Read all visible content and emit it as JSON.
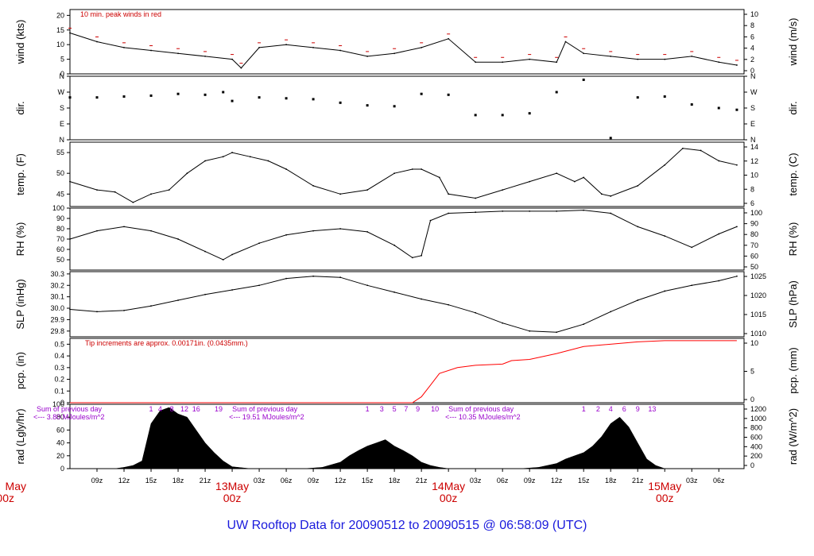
{
  "title": "UW Rooftop Data for 20090512  to  20090515 @ 06:58:09  (UTC)",
  "colors": {
    "frame": "#000000",
    "peak": "#cc0000",
    "precip": "#ff0000",
    "note": "#9900cc",
    "title": "#1a1adc",
    "date": "#cc0000"
  },
  "time_axis": {
    "hour_ticks": [
      "09z",
      "12z",
      "15z",
      "18z",
      "21z",
      "00z",
      "03z",
      "06z",
      "09z",
      "12z",
      "15z",
      "18z",
      "21z",
      "00z",
      "03z",
      "06z",
      "09z",
      "12z",
      "15z",
      "18z",
      "21z",
      "00z",
      "03z",
      "06z"
    ],
    "day_labels": [
      {
        "day": "May",
        "hour": "00z",
        "t": 0
      },
      {
        "day": "13May",
        "hour": "00z",
        "t": 24
      },
      {
        "day": "14May",
        "hour": "00z",
        "t": 48
      },
      {
        "day": "15May",
        "hour": "00z",
        "t": 72
      }
    ]
  },
  "chart_data": [
    {
      "type": "line",
      "id": "wind",
      "ylabel": "wind (kts)",
      "ylabel_right": "wind (m/s)",
      "left_ticks": [
        "0",
        "5",
        "10",
        "15",
        "20"
      ],
      "ylim": [
        0,
        22
      ],
      "right_ticks": [
        "0",
        "2",
        "4",
        "6",
        "8",
        "10"
      ],
      "annotation": "10 min. peak winds in red",
      "x": [
        6,
        9,
        12,
        15,
        18,
        21,
        24,
        25,
        27,
        30,
        33,
        36,
        39,
        42,
        45,
        48,
        51,
        54,
        57,
        60,
        61,
        63,
        66,
        69,
        72,
        75,
        78,
        80
      ],
      "y": [
        14,
        11,
        9,
        8,
        7,
        6,
        5,
        2,
        9,
        10,
        9,
        8,
        6,
        7,
        9,
        12,
        4,
        4,
        5,
        4,
        11,
        7,
        6,
        5,
        5,
        6,
        4,
        3
      ]
    },
    {
      "type": "scatter",
      "id": "dir",
      "ylabel": "dir.",
      "ylabel_right": "dir.",
      "left_ticks": [
        "N",
        "E",
        "S",
        "W",
        "N"
      ],
      "right_ticks": [
        "N",
        "E",
        "S",
        "W",
        "N"
      ],
      "ylim": [
        0,
        360
      ],
      "x": [
        6,
        9,
        12,
        15,
        18,
        21,
        23,
        24,
        27,
        30,
        33,
        36,
        39,
        42,
        45,
        48,
        51,
        54,
        57,
        60,
        63,
        66,
        69,
        72,
        75,
        78,
        80
      ],
      "y": [
        240,
        240,
        245,
        250,
        260,
        255,
        270,
        220,
        240,
        235,
        230,
        210,
        195,
        190,
        260,
        255,
        140,
        140,
        150,
        270,
        340,
        10,
        240,
        245,
        200,
        180,
        170
      ]
    },
    {
      "type": "line",
      "id": "temp",
      "ylabel": "temp. (F)",
      "ylabel_right": "temp. (C)",
      "left_ticks": [
        "45",
        "50",
        "55"
      ],
      "ylim": [
        42,
        57.5
      ],
      "right_ticks": [
        "6",
        "8",
        "10",
        "12",
        "14"
      ],
      "x": [
        6,
        9,
        11,
        13,
        15,
        17,
        19,
        21,
        23,
        24,
        26,
        28,
        30,
        33,
        36,
        39,
        42,
        44,
        45,
        47,
        48,
        51,
        54,
        57,
        60,
        62,
        63,
        65,
        66,
        69,
        72,
        74,
        76,
        78,
        80
      ],
      "y": [
        48,
        46,
        45.5,
        43,
        45,
        46,
        50,
        53,
        54,
        55,
        54,
        53,
        51,
        47,
        45,
        46,
        50,
        51,
        51,
        49,
        45,
        44,
        46,
        48,
        50,
        48,
        49,
        45,
        44.5,
        47,
        52,
        56,
        55.5,
        53,
        52
      ]
    },
    {
      "type": "line",
      "id": "rh",
      "ylabel": "RH (%)",
      "ylabel_right": "RH (%)",
      "left_ticks": [
        "50",
        "60",
        "70",
        "80",
        "90",
        "100"
      ],
      "ylim": [
        40,
        100
      ],
      "right_ticks": [
        "50",
        "60",
        "70",
        "80",
        "90",
        "100"
      ],
      "x": [
        6,
        9,
        12,
        15,
        18,
        21,
        23,
        24,
        27,
        30,
        33,
        36,
        39,
        42,
        44,
        45,
        46,
        48,
        51,
        54,
        57,
        60,
        63,
        66,
        69,
        72,
        75,
        78,
        80
      ],
      "y": [
        70,
        78,
        82,
        78,
        70,
        58,
        50,
        55,
        66,
        74,
        78,
        80,
        77,
        64,
        52,
        54,
        88,
        95,
        96,
        97,
        97,
        97,
        98,
        95,
        82,
        73,
        62,
        75,
        82
      ]
    },
    {
      "type": "line",
      "id": "slp",
      "ylabel": "SLP (inHg)",
      "ylabel_right": "SLP (hPa)",
      "left_ticks": [
        "29.8",
        "29.9",
        "30.0",
        "30.1",
        "30.2",
        "30.3"
      ],
      "ylim": [
        29.75,
        30.32
      ],
      "right_ticks": [
        "1010",
        "1015",
        "1020",
        "1025"
      ],
      "x": [
        6,
        9,
        12,
        15,
        18,
        21,
        24,
        27,
        30,
        33,
        36,
        39,
        42,
        45,
        48,
        51,
        54,
        57,
        60,
        63,
        66,
        69,
        72,
        75,
        78,
        80
      ],
      "y": [
        29.99,
        29.97,
        29.98,
        30.02,
        30.07,
        30.12,
        30.16,
        30.2,
        30.26,
        30.28,
        30.27,
        30.2,
        30.14,
        30.08,
        30.03,
        29.96,
        29.87,
        29.8,
        29.79,
        29.86,
        29.97,
        30.07,
        30.15,
        30.2,
        30.24,
        30.28
      ]
    },
    {
      "type": "area",
      "id": "pcp",
      "ylabel": "pcp. (in)",
      "ylabel_right": "pcp. (mm)",
      "left_ticks": [
        "0",
        "0.1",
        "0.2",
        "0.3",
        "0.4",
        "0.5"
      ],
      "ylim": [
        0,
        0.55
      ],
      "right_ticks": [
        "0",
        "5",
        "10"
      ],
      "annotation": "Tip increments are approx. 0.00171in. (0.0435mm.)",
      "x": [
        6,
        30,
        44,
        45,
        46,
        47,
        49,
        51,
        54,
        55,
        57,
        60,
        63,
        69,
        72,
        78,
        80
      ],
      "y": [
        0,
        0,
        0,
        0.05,
        0.15,
        0.25,
        0.3,
        0.32,
        0.33,
        0.36,
        0.37,
        0.42,
        0.48,
        0.52,
        0.53,
        0.53,
        0.53
      ]
    },
    {
      "type": "area",
      "id": "rad",
      "ylabel": "rad (Lgly/hr)",
      "ylabel_right": "rad (W/m^2)",
      "left_ticks": [
        "0",
        "20",
        "40",
        "60",
        "80",
        "100"
      ],
      "ylim": [
        0,
        100
      ],
      "right_ticks": [
        "0",
        "200",
        "400",
        "600",
        "800",
        "1000",
        "1200"
      ],
      "notes": [
        {
          "line1": "Sum of previous day",
          "line2": "<--- 3.80 MJoules/m^2",
          "t": -2
        },
        {
          "line1": "Sum of previous day",
          "line2": "<--- 19.51 MJoules/m^2",
          "t": 24
        },
        {
          "line1": "Sum of previous day",
          "line2": "<--- 10.35 MJoules/m^2",
          "t": 48
        }
      ],
      "hour_marks": [
        {
          "t": 15,
          "label": "1"
        },
        {
          "t": 16,
          "label": "4"
        },
        {
          "t": 17.3,
          "label": "8"
        },
        {
          "t": 18.7,
          "label": "12"
        },
        {
          "t": 20,
          "label": "16"
        },
        {
          "t": 22.5,
          "label": "19"
        },
        {
          "t": 39,
          "label": "1"
        },
        {
          "t": 40.6,
          "label": "3"
        },
        {
          "t": 42,
          "label": "5"
        },
        {
          "t": 43.3,
          "label": "7"
        },
        {
          "t": 44.6,
          "label": "9"
        },
        {
          "t": 46.5,
          "label": "10"
        },
        {
          "t": 63,
          "label": "1"
        },
        {
          "t": 64.6,
          "label": "2"
        },
        {
          "t": 66,
          "label": "4"
        },
        {
          "t": 67.5,
          "label": "6"
        },
        {
          "t": 69,
          "label": "9"
        },
        {
          "t": 70.6,
          "label": "13"
        }
      ],
      "x": [
        6,
        11,
        12,
        13,
        14,
        15,
        16,
        17,
        18,
        19,
        20,
        21,
        22,
        23,
        24,
        26,
        32,
        34,
        36,
        37,
        38,
        39,
        40,
        41,
        42,
        43,
        44,
        45,
        46,
        47,
        48,
        56,
        58,
        60,
        61,
        62,
        63,
        64,
        65,
        66,
        67,
        68,
        69,
        70,
        71,
        72,
        80
      ],
      "y": [
        0,
        0,
        2,
        5,
        12,
        70,
        90,
        95,
        85,
        80,
        60,
        40,
        25,
        12,
        3,
        0,
        0,
        2,
        10,
        20,
        28,
        35,
        40,
        45,
        35,
        28,
        20,
        10,
        5,
        2,
        0,
        0,
        2,
        8,
        15,
        20,
        25,
        35,
        50,
        70,
        80,
        65,
        40,
        15,
        5,
        0,
        0
      ]
    }
  ]
}
